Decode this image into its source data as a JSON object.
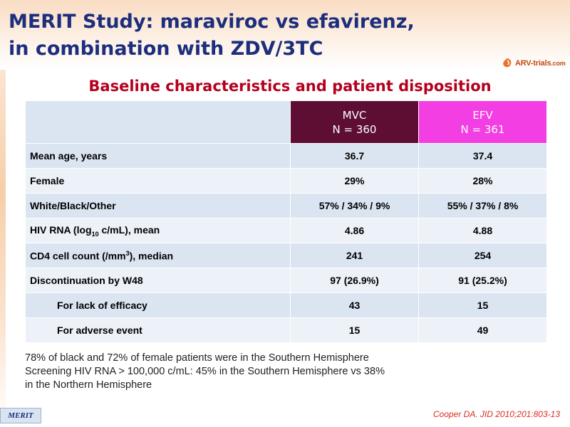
{
  "slide": {
    "title_line1": "MERIT Study: maraviroc vs efavirenz,",
    "title_line2": "in combination with ZDV/3TC",
    "subtitle": "Baseline characteristics and patient disposition"
  },
  "logo": {
    "text_main": "ARV-trials",
    "text_suffix": ".com",
    "icon": "arv-trials-logo-icon"
  },
  "table": {
    "columns": [
      {
        "name": "MVC",
        "n": "N = 360",
        "color": "#5e0d33"
      },
      {
        "name": "EFV",
        "n": "N = 361",
        "color": "#f23ee2"
      }
    ],
    "rows": {
      "mean_age": {
        "label": "Mean age, years",
        "mvc": "36.7",
        "efv": "37.4"
      },
      "female": {
        "label": "Female",
        "mvc": "29%",
        "efv": "28%"
      },
      "race": {
        "label": "White/Black/Other",
        "mvc": "57% / 34% / 9%",
        "efv": "55% / 37% / 8%"
      },
      "hiv_rna": {
        "label_pre": "HIV RNA (log",
        "label_sub": "10",
        "label_post": " c/mL), mean",
        "mvc": "4.86",
        "efv": "4.88"
      },
      "cd4": {
        "label_pre": "CD4 cell count (/mm",
        "label_sup": "3",
        "label_post": "), median",
        "mvc": "241",
        "efv": "254"
      },
      "discontinuation": {
        "label": "Discontinuation by W48",
        "mvc": "97 (26.9%)",
        "efv": "91 (25.2%)"
      },
      "lack_efficacy": {
        "label": "For lack of efficacy",
        "mvc": "43",
        "efv": "15"
      },
      "adverse_event": {
        "label": "For adverse event",
        "mvc": "15",
        "efv": "49"
      }
    }
  },
  "notes": {
    "line1": "78% of black and 72% of female patients were in the Southern Hemisphere",
    "line2": "Screening HIV RNA > 100,000 c/mL: 45% in the Southern Hemisphere vs 38%",
    "line3": "in the Northern Hemisphere"
  },
  "footer": {
    "badge": "MERIT",
    "citation": "Cooper DA. JID 2010;201:803-13"
  }
}
